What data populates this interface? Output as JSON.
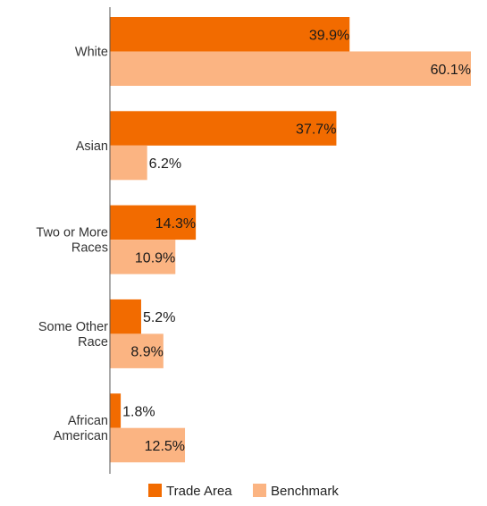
{
  "chart_data": {
    "type": "bar",
    "orientation": "horizontal",
    "categories": [
      [
        "White"
      ],
      [
        "Asian"
      ],
      [
        "Two or More",
        "Races"
      ],
      [
        "Some Other",
        "Race"
      ],
      [
        "African",
        "American"
      ]
    ],
    "series": [
      {
        "name": "Trade Area",
        "values": [
          39.9,
          37.7,
          14.3,
          5.2,
          1.8
        ],
        "color": "#f26b00"
      },
      {
        "name": "Benchmark",
        "values": [
          60.1,
          6.2,
          10.9,
          8.9,
          12.5
        ],
        "color": "#fbb482"
      }
    ],
    "value_suffix": "%",
    "xlim": [
      0,
      60.1
    ],
    "grid": false,
    "legend_position": "bottom"
  }
}
